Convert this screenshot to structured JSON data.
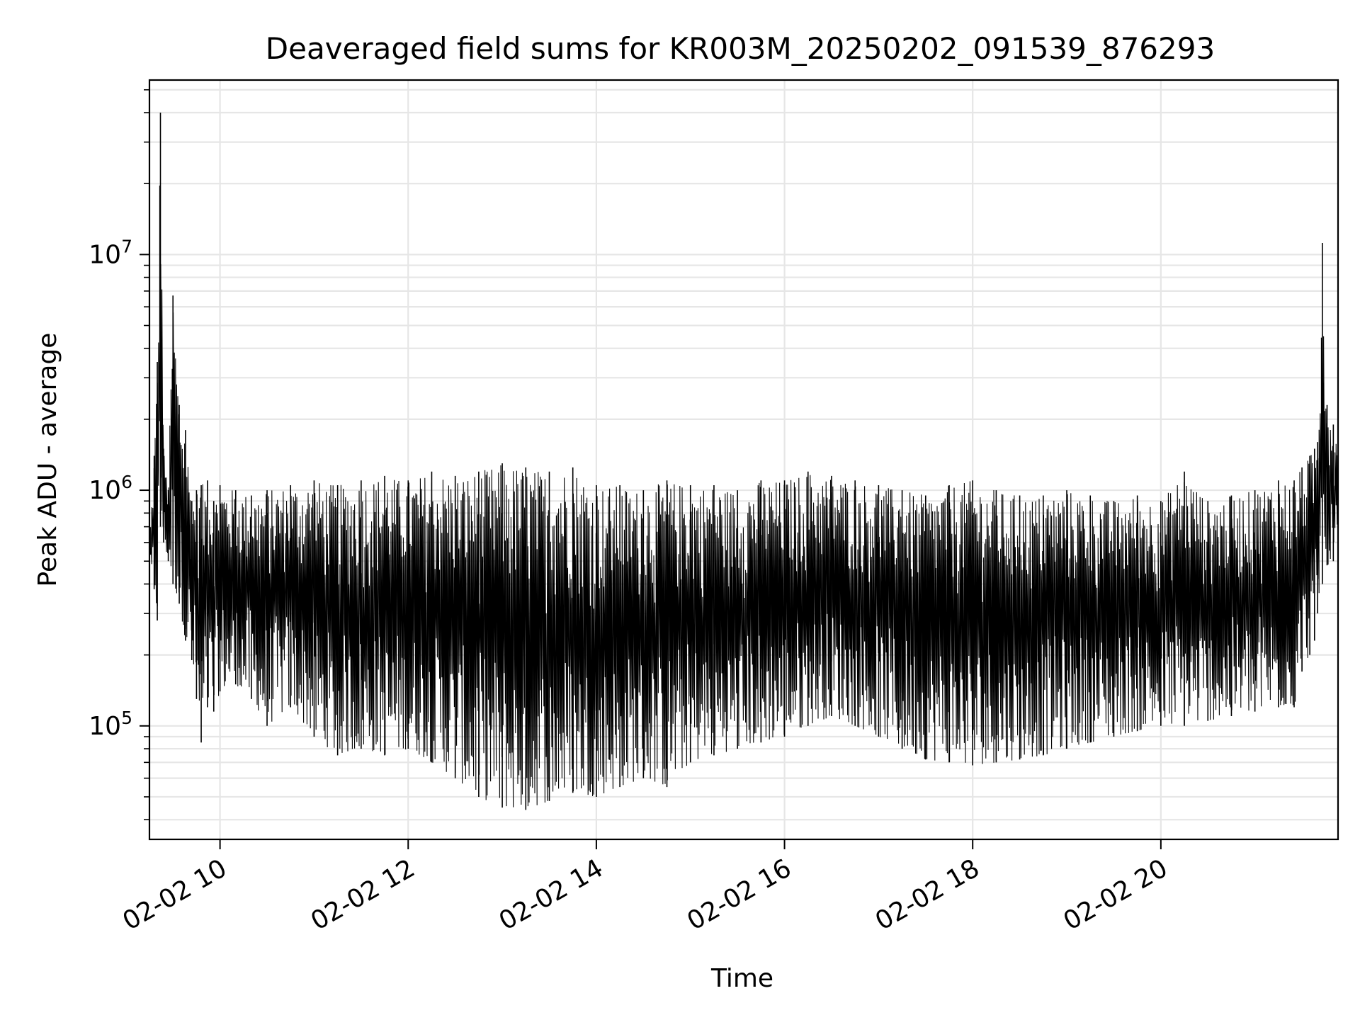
{
  "chart_data": {
    "type": "line",
    "title": "Deaveraged field sums for KR003M_20250202_091539_876293",
    "xlabel": "Time",
    "ylabel": "Peak ADU - average",
    "x_scale": "time",
    "y_scale": "log",
    "xlim": [
      "2025-02-02 09:15",
      "2025-02-02 21:53"
    ],
    "ylim": [
      33000,
      55000000
    ],
    "grid": true,
    "grid_color": "#e6e6e6",
    "line_color": "#000000",
    "x_ticks": [
      {
        "value": "2025-02-02 10:00",
        "label": "02-02 10"
      },
      {
        "value": "2025-02-02 12:00",
        "label": "02-02 12"
      },
      {
        "value": "2025-02-02 14:00",
        "label": "02-02 14"
      },
      {
        "value": "2025-02-02 16:00",
        "label": "02-02 16"
      },
      {
        "value": "2025-02-02 18:00",
        "label": "02-02 18"
      },
      {
        "value": "2025-02-02 20:00",
        "label": "02-02 20"
      }
    ],
    "y_ticks": [
      {
        "value": 100000,
        "base": "10",
        "exp": "5"
      },
      {
        "value": 1000000,
        "base": "10",
        "exp": "6"
      },
      {
        "value": 10000000,
        "base": "10",
        "exp": "7"
      }
    ],
    "series": [
      {
        "x": [
          "2025-02-02 09:15",
          "2025-02-02 09:18",
          "2025-02-02 09:20",
          "2025-02-02 09:22",
          "2025-02-02 09:24",
          "2025-02-02 09:27",
          "2025-02-02 09:30",
          "2025-02-02 09:34",
          "2025-02-02 09:38",
          "2025-02-02 09:42",
          "2025-02-02 09:45",
          "2025-02-02 09:48",
          "2025-02-02 09:52",
          "2025-02-02 09:56",
          "2025-02-02 10:00",
          "2025-02-02 10:10",
          "2025-02-02 10:20",
          "2025-02-02 10:30",
          "2025-02-02 10:45",
          "2025-02-02 11:00",
          "2025-02-02 11:15",
          "2025-02-02 11:30",
          "2025-02-02 11:45",
          "2025-02-02 12:00",
          "2025-02-02 12:15",
          "2025-02-02 12:30",
          "2025-02-02 12:45",
          "2025-02-02 13:00",
          "2025-02-02 13:15",
          "2025-02-02 13:30",
          "2025-02-02 13:45",
          "2025-02-02 14:00",
          "2025-02-02 14:15",
          "2025-02-02 14:30",
          "2025-02-02 14:45",
          "2025-02-02 15:00",
          "2025-02-02 15:15",
          "2025-02-02 15:30",
          "2025-02-02 15:45",
          "2025-02-02 16:00",
          "2025-02-02 16:15",
          "2025-02-02 16:30",
          "2025-02-02 16:45",
          "2025-02-02 17:00",
          "2025-02-02 17:15",
          "2025-02-02 17:30",
          "2025-02-02 17:45",
          "2025-02-02 18:00",
          "2025-02-02 18:15",
          "2025-02-02 18:30",
          "2025-02-02 18:45",
          "2025-02-02 19:00",
          "2025-02-02 19:15",
          "2025-02-02 19:30",
          "2025-02-02 19:45",
          "2025-02-02 20:00",
          "2025-02-02 20:15",
          "2025-02-02 20:30",
          "2025-02-02 20:45",
          "2025-02-02 21:00",
          "2025-02-02 21:15",
          "2025-02-02 21:25",
          "2025-02-02 21:30",
          "2025-02-02 21:35",
          "2025-02-02 21:38",
          "2025-02-02 21:40",
          "2025-02-02 21:43",
          "2025-02-02 21:46",
          "2025-02-02 21:50",
          "2025-02-02 21:53"
        ],
        "upper": [
          600000,
          1400000,
          3500000,
          40000000,
          1500000,
          1000000,
          6700000,
          2300000,
          1800000,
          900000,
          1000000,
          1050000,
          1100000,
          900000,
          1050000,
          1000000,
          950000,
          1000000,
          1050000,
          1100000,
          1050000,
          1100000,
          1150000,
          1100000,
          1200000,
          1150000,
          1200000,
          1300000,
          1250000,
          1200000,
          1250000,
          1050000,
          1050000,
          1000000,
          1100000,
          1050000,
          1050000,
          1000000,
          1100000,
          1100000,
          1200000,
          1150000,
          1100000,
          1050000,
          1000000,
          950000,
          1050000,
          1100000,
          1000000,
          950000,
          950000,
          1000000,
          950000,
          900000,
          950000,
          900000,
          1200000,
          900000,
          950000,
          1000000,
          1100000,
          1100000,
          1250000,
          1400000,
          1500000,
          1600000,
          11200000,
          2300000,
          1900000,
          1500000
        ],
        "lower": [
          420000,
          380000,
          280000,
          700000,
          600000,
          500000,
          400000,
          330000,
          230000,
          190000,
          130000,
          85000,
          120000,
          115000,
          140000,
          150000,
          130000,
          100000,
          120000,
          90000,
          75000,
          80000,
          75000,
          80000,
          70000,
          60000,
          50000,
          45000,
          44000,
          48000,
          52000,
          50000,
          55000,
          60000,
          55000,
          70000,
          75000,
          80000,
          85000,
          90000,
          100000,
          110000,
          100000,
          90000,
          80000,
          72000,
          70000,
          68000,
          70000,
          72000,
          75000,
          80000,
          85000,
          90000,
          95000,
          100000,
          100000,
          105000,
          110000,
          115000,
          120000,
          120000,
          170000,
          200000,
          230000,
          300000,
          400000,
          480000,
          500000,
          600000
        ]
      }
    ]
  }
}
